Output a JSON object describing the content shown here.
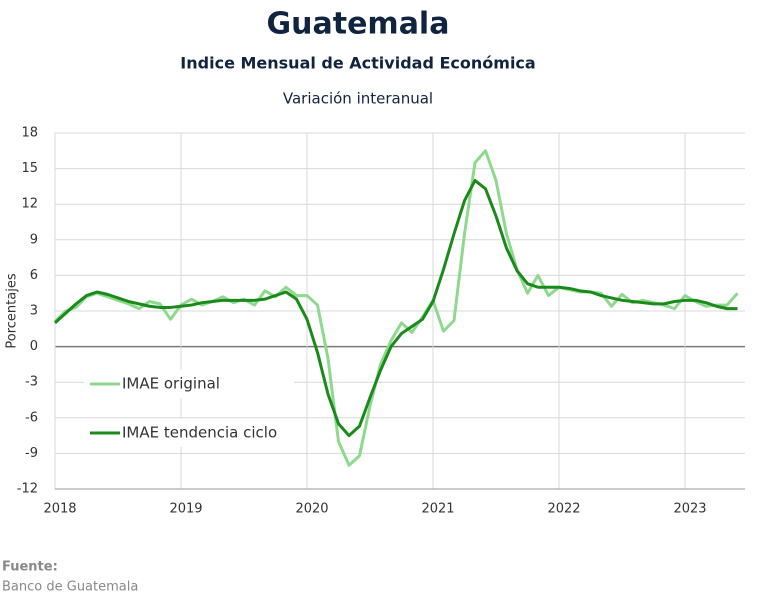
{
  "chart_data": {
    "type": "line",
    "title": "Guatemala",
    "subtitle": "Indice Mensual de  Actividad Económica",
    "subtitle2": "Variación interanual",
    "y_label": "Porcentajes",
    "source_label": "Fuente:",
    "source": "Banco de Guatemala",
    "categories": [
      "2018",
      null,
      null,
      null,
      null,
      null,
      null,
      null,
      null,
      null,
      null,
      null,
      "2019",
      null,
      null,
      null,
      null,
      null,
      null,
      null,
      null,
      null,
      null,
      null,
      "2020",
      null,
      null,
      null,
      null,
      null,
      null,
      null,
      null,
      null,
      null,
      null,
      "2021",
      null,
      null,
      null,
      null,
      null,
      null,
      null,
      null,
      null,
      null,
      null,
      "2022",
      null,
      null,
      null,
      null,
      null,
      null,
      null,
      null,
      null,
      null,
      null,
      "2023",
      null,
      null,
      null,
      null,
      null
    ],
    "series": [
      {
        "name": "IMAE original",
        "color": "#8fd98f",
        "width": 3,
        "values": [
          2.1,
          3.0,
          3.3,
          4.2,
          4.5,
          4.2,
          3.9,
          3.6,
          3.2,
          3.8,
          3.6,
          2.3,
          3.5,
          4.0,
          3.5,
          3.8,
          4.2,
          3.7,
          4.0,
          3.5,
          4.7,
          4.2,
          5.0,
          4.3,
          4.3,
          3.5,
          -1.0,
          -8.0,
          -10.0,
          -9.2,
          -5.0,
          -1.5,
          0.5,
          2.0,
          1.2,
          2.5,
          3.9,
          1.3,
          2.2,
          9.5,
          15.5,
          16.5,
          14.0,
          9.5,
          6.5,
          4.5,
          6.0,
          4.3,
          5.0,
          4.8,
          4.6,
          4.6,
          4.5,
          3.4,
          4.4,
          3.7,
          3.9,
          3.7,
          3.5,
          3.2,
          4.3,
          3.8,
          3.4,
          3.5,
          3.5,
          4.5
        ]
      },
      {
        "name": "IMAE tendencia ciclo",
        "color": "#1a8a1a",
        "width": 3,
        "values": [
          2.0,
          2.8,
          3.6,
          4.3,
          4.6,
          4.4,
          4.1,
          3.8,
          3.6,
          3.4,
          3.3,
          3.3,
          3.4,
          3.5,
          3.7,
          3.8,
          3.9,
          3.9,
          3.9,
          3.9,
          4.0,
          4.3,
          4.6,
          4.0,
          2.3,
          -0.5,
          -4.0,
          -6.5,
          -7.5,
          -6.7,
          -4.3,
          -2.0,
          0.0,
          1.1,
          1.7,
          2.3,
          3.8,
          6.5,
          9.5,
          12.3,
          14.0,
          13.3,
          11.0,
          8.3,
          6.4,
          5.3,
          5.0,
          5.0,
          5.0,
          4.9,
          4.7,
          4.6,
          4.3,
          4.1,
          3.9,
          3.8,
          3.7,
          3.6,
          3.6,
          3.8,
          3.9,
          3.9,
          3.7,
          3.4,
          3.2,
          3.2
        ]
      }
    ],
    "ylim": [
      -12,
      18
    ],
    "yticks": [
      -12,
      -9,
      -6,
      -3,
      0,
      3,
      6,
      9,
      12,
      15,
      18
    ],
    "grid": true,
    "negative_tick_color": "#e02020",
    "legend_position": "left"
  }
}
